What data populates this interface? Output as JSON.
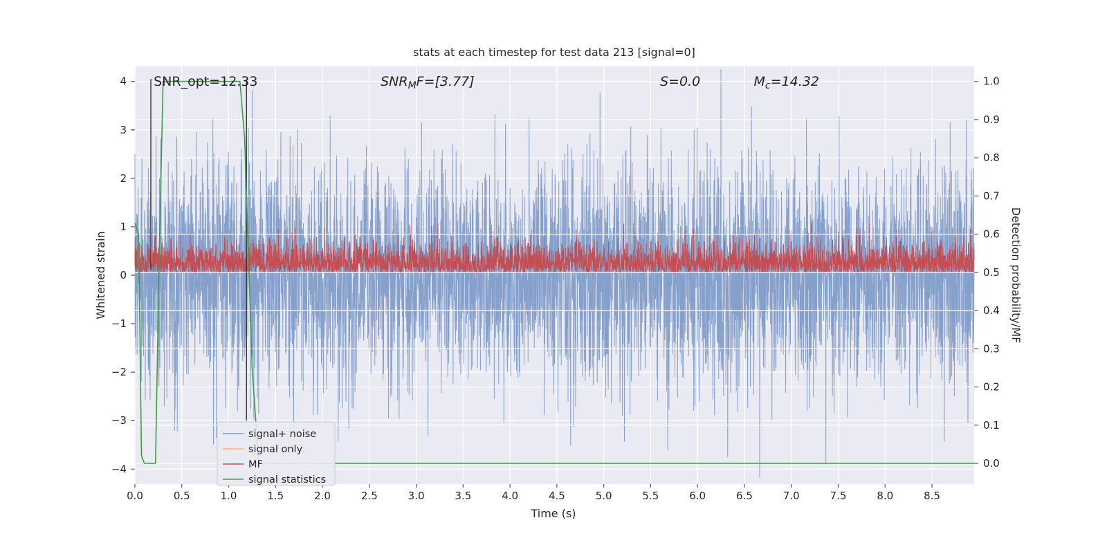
{
  "figure": {
    "background": "#ffffff",
    "axes_background": "#eaeaf2",
    "grid_color": "#ffffff",
    "text_color": "#262626",
    "tick_color": "#555555"
  },
  "chart_data": {
    "type": "line",
    "title": "stats at each timestep for test data 213 [signal=0]",
    "xlabel": "Time (s)",
    "ylabel_left": "Whitened strain",
    "ylabel_right": "Detection probability/MF",
    "xlim": [
      0.0,
      8.95
    ],
    "ylim_left": [
      -4.31,
      4.31
    ],
    "ylim_right": [
      -0.0543,
      1.0393
    ],
    "grid": true,
    "legend_position": "lower left",
    "x_ticks": {
      "values": [
        0.0,
        0.5,
        1.0,
        1.5,
        2.0,
        2.5,
        3.0,
        3.5,
        4.0,
        4.5,
        5.0,
        5.5,
        6.0,
        6.5,
        7.0,
        7.5,
        8.0,
        8.5
      ],
      "labels": [
        "0.0",
        "0.5",
        "1.0",
        "1.5",
        "2.0",
        "2.5",
        "3.0",
        "3.5",
        "4.0",
        "4.5",
        "5.0",
        "5.5",
        "6.0",
        "6.5",
        "7.0",
        "7.5",
        "8.0",
        "8.5"
      ]
    },
    "y_ticks_left": {
      "values": [
        -4,
        -3,
        -2,
        -1,
        0,
        1,
        2,
        3,
        4
      ],
      "labels": [
        "−4",
        "−3",
        "−2",
        "−1",
        "0",
        "1",
        "2",
        "3",
        "4"
      ]
    },
    "y_ticks_right": {
      "values": [
        0.0,
        0.1,
        0.2,
        0.3,
        0.4,
        0.5,
        0.6,
        0.7,
        0.8,
        0.9,
        1.0
      ],
      "labels": [
        "0.0",
        "0.1",
        "0.2",
        "0.3",
        "0.4",
        "0.5",
        "0.6",
        "0.7",
        "0.8",
        "0.9",
        "1.0"
      ]
    },
    "annotations": {
      "snr_opt": {
        "text": "SNR_opt=12.33",
        "x": 0.2,
        "y": 4.0,
        "italic": false
      },
      "snr_mf": {
        "base": "SNR",
        "sub": "M",
        "rest": "F=[3.77]",
        "x": 2.62,
        "y": 4.0,
        "italic": true
      },
      "s_stat": {
        "base": "S",
        "sub": "",
        "rest": "=0.0",
        "x": 5.6,
        "y": 4.0,
        "italic": true
      },
      "m_c": {
        "base": "M",
        "sub": "c",
        "rest": "=14.32",
        "x": 6.6,
        "y": 4.0,
        "italic": true
      }
    },
    "series": [
      {
        "name": "signal+ noise",
        "color": "#7b98c8",
        "axis": "left",
        "kind": "gaussian-noise",
        "sigma": 1.15,
        "n": 4200,
        "seed": 42,
        "clip": 4.25,
        "linewidth": 1
      },
      {
        "name": "signal only",
        "color": "#f0b27e",
        "axis": "left",
        "kind": "empty"
      },
      {
        "name": "MF",
        "color": "#c44e52",
        "axis": "left",
        "kind": "abs-gaussian-noise",
        "sigma": 0.3,
        "offset": 0.04,
        "max": 1.12,
        "min": 0.02,
        "n": 4200,
        "seed": 7,
        "linewidth": 1
      },
      {
        "name": "signal statistics",
        "color": "#3f9b45",
        "axis": "right",
        "kind": "piecewise",
        "linewidth": 1.6,
        "points": [
          [
            0.0,
            0.63
          ],
          [
            0.04,
            0.6
          ],
          [
            0.07,
            0.02
          ],
          [
            0.1,
            0.0
          ],
          [
            0.22,
            0.0
          ],
          [
            0.26,
            0.55
          ],
          [
            0.3,
            1.0
          ],
          [
            1.12,
            1.0
          ],
          [
            1.17,
            0.85
          ],
          [
            1.25,
            0.25
          ],
          [
            1.32,
            0.0
          ],
          [
            8.95,
            0.0
          ]
        ]
      }
    ],
    "event_lines": [
      {
        "x": 0.17,
        "y_top": 4.05,
        "y_bottom": 0.1,
        "color": "#3b3b3b"
      },
      {
        "x": 1.19,
        "y_top": 4.05,
        "y_bottom": -3.0,
        "color": "#3b3b3b"
      }
    ],
    "legend": {
      "entries": [
        "signal+ noise",
        "signal only",
        "MF",
        "signal statistics"
      ]
    }
  }
}
